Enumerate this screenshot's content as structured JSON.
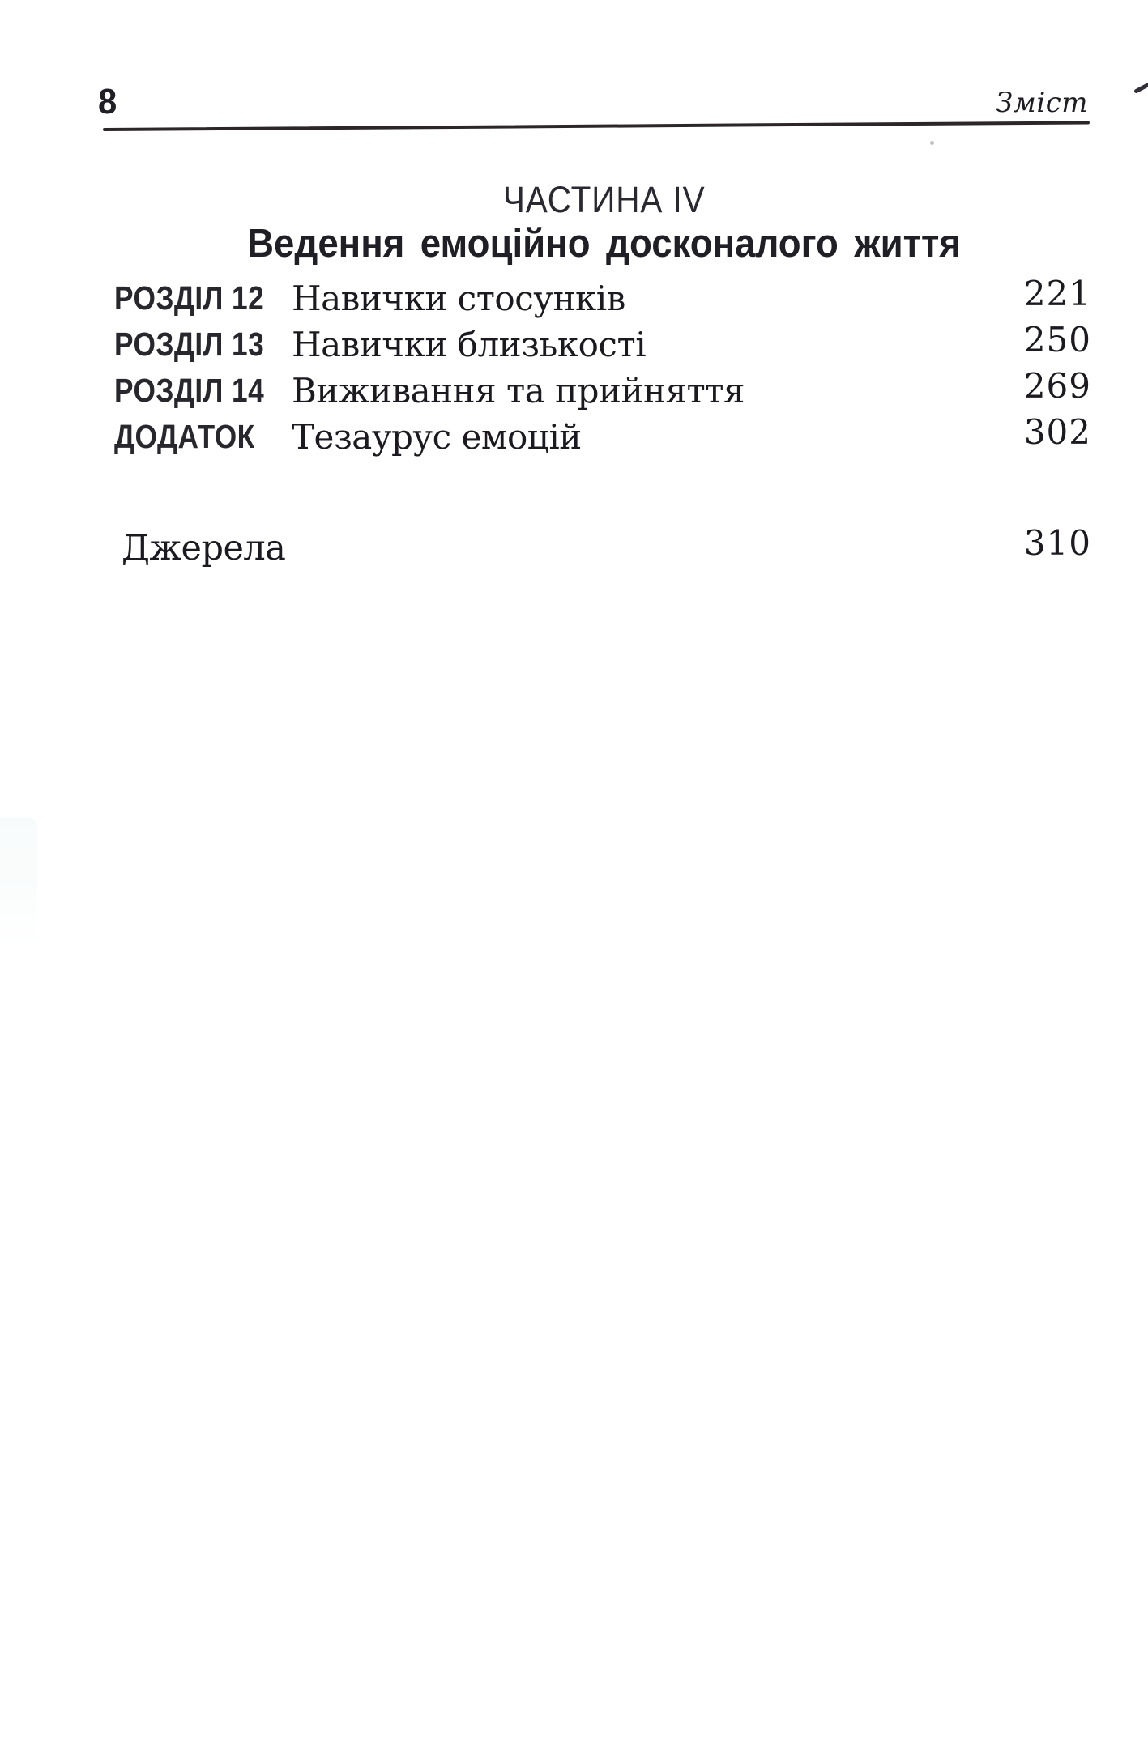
{
  "doc": {
    "folio": "8",
    "running_head": "Зміст",
    "part": {
      "label": "ЧАСТИНА IV",
      "title": "Ведення емоційно досконалого життя"
    },
    "entries": [
      {
        "label": "РОЗДІЛ 12",
        "title": "Навички стосунків",
        "page": "221"
      },
      {
        "label": "РОЗДІЛ 13",
        "title": "Навички близькості",
        "page": "250"
      },
      {
        "label": "РОЗДІЛ 14",
        "title": "Виживання та прийняття",
        "page": "269"
      },
      {
        "label": "ДОДАТОК",
        "title": "Тезаурус емоцій",
        "page": "302"
      }
    ],
    "back": {
      "title": "Джерела",
      "page": "310"
    },
    "colors": {
      "paper": "#ffffff",
      "ink_sans": "#26242a",
      "ink_serif": "#1c1a20",
      "rule": "#2b2628"
    }
  }
}
